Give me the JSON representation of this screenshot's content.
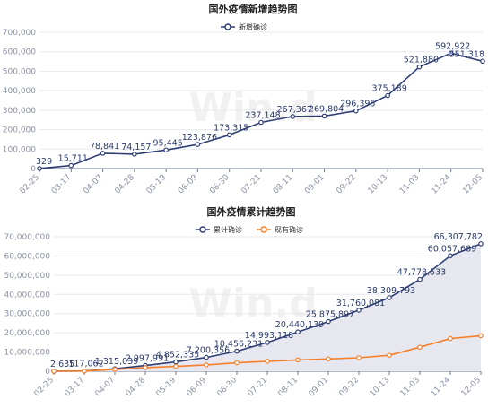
{
  "chart_data": [
    {
      "type": "line",
      "title": "国外疫情新增趋势图",
      "watermark": "Win.d",
      "legend": [
        "新增确诊"
      ],
      "legend_position": "top-center",
      "categories": [
        "02-25",
        "03-17",
        "04-07",
        "04-28",
        "05-19",
        "06-09",
        "06-30",
        "07-21",
        "08-11",
        "09-01",
        "09-22",
        "10-13",
        "11-03",
        "11-24",
        "12-05"
      ],
      "ylim": [
        0,
        700000
      ],
      "yticks": [
        0,
        100000,
        200000,
        300000,
        400000,
        500000,
        600000,
        700000
      ],
      "ytick_labels": [
        "0",
        "100,000",
        "200,000",
        "300,000",
        "400,000",
        "500,000",
        "600,000",
        "700,000"
      ],
      "grid": true,
      "colors": {
        "line": "#2f3f75",
        "grid": "#e6e8ee",
        "axis": "#6e7890"
      },
      "series": [
        {
          "name": "新增确诊",
          "values": [
            329,
            15711,
            78841,
            74157,
            95445,
            123876,
            173315,
            237148,
            267367,
            269804,
            296395,
            375189,
            521880,
            592922,
            551318
          ]
        }
      ],
      "data_labels": [
        "329",
        "15,711",
        "78,841",
        "74,157",
        "95,445",
        "123,876",
        "173,315",
        "237,148",
        "267,367",
        "269,804",
        "296,395",
        "375,189",
        "521,880",
        "592,922",
        "551,318"
      ]
    },
    {
      "type": "area",
      "title": "国外疫情累计趋势图",
      "watermark": "Win.d",
      "legend": [
        "累计确诊",
        "现有确诊"
      ],
      "legend_position": "top-center",
      "categories": [
        "02-25",
        "03-17",
        "04-07",
        "04-28",
        "05-19",
        "06-09",
        "06-30",
        "07-21",
        "08-11",
        "09-01",
        "09-22",
        "10-13",
        "11-03",
        "11-24",
        "12-05"
      ],
      "ylim": [
        0,
        70000000
      ],
      "yticks": [
        0,
        10000000,
        20000000,
        30000000,
        40000000,
        50000000,
        60000000,
        70000000
      ],
      "ytick_labels": [
        "0",
        "10,000,000",
        "20,000,000",
        "30,000,000",
        "40,000,000",
        "50,000,000",
        "60,000,000",
        "70,000,000"
      ],
      "grid": true,
      "colors": {
        "cumulative": "#2f3f75",
        "current": "#f5812d",
        "area": "#e6e7ef"
      },
      "series": [
        {
          "name": "累计确诊",
          "values": [
            2635,
            117062,
            1315039,
            2997991,
            4852335,
            7200356,
            10456231,
            14993118,
            20440139,
            25875897,
            31760081,
            38309793,
            47778533,
            60057689,
            66307782
          ]
        },
        {
          "name": "现有确诊",
          "values": [
            2000,
            95000,
            1000000,
            1900000,
            2500000,
            3300000,
            4400000,
            5200000,
            5900000,
            6400000,
            7000000,
            8300000,
            12500000,
            17000000,
            18500000
          ]
        }
      ],
      "data_labels": [
        "2,635",
        "117,062",
        "1,315,039",
        "2,997,991",
        "4,852,335",
        "7,200,356",
        "10,456,231",
        "14,993,118",
        "20,440,139",
        "25,875,897",
        "31,760,081",
        "38,309,793",
        "47,778,533",
        "60,057,689",
        "66,307,782"
      ]
    }
  ]
}
